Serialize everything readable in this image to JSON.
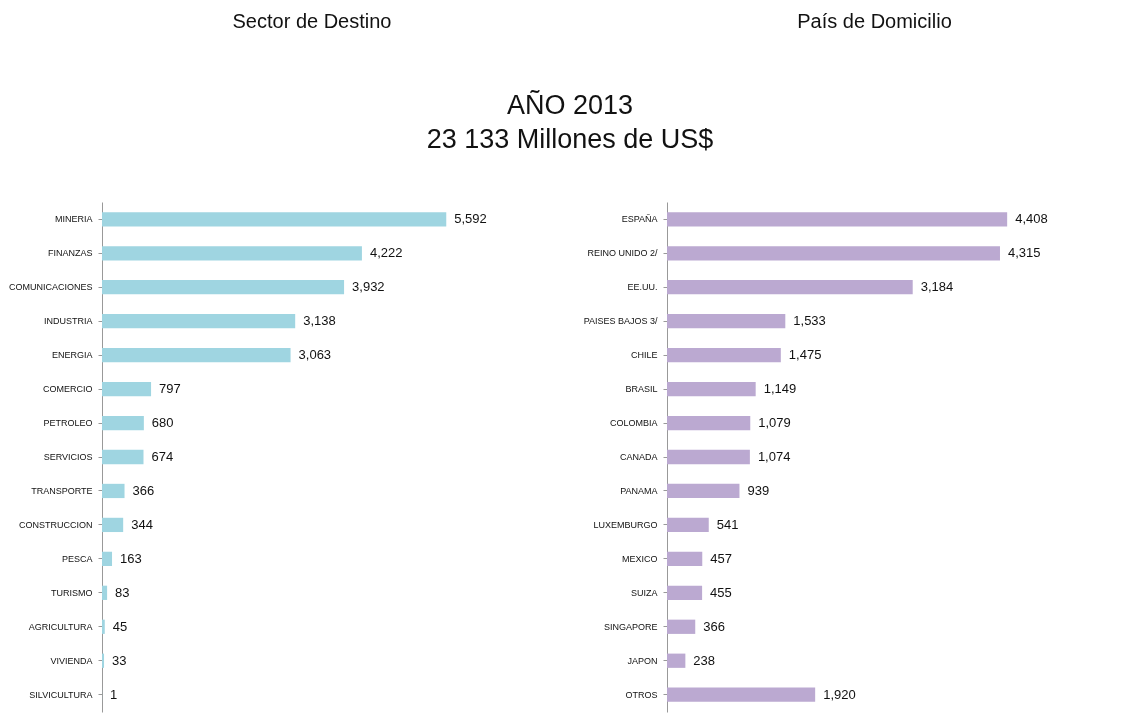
{
  "chart_data": [
    {
      "type": "bar",
      "orientation": "horizontal",
      "title": "Sector de Destino",
      "categories": [
        "MINERIA",
        "FINANZAS",
        "COMUNICACIONES",
        "INDUSTRIA",
        "ENERGIA",
        "COMERCIO",
        "PETROLEO",
        "SERVICIOS",
        "TRANSPORTE",
        "CONSTRUCCION",
        "PESCA",
        "TURISMO",
        "AGRICULTURA",
        "VIVIENDA",
        "SILVICULTURA"
      ],
      "values": [
        5592,
        4222,
        3932,
        3138,
        3063,
        797,
        680,
        674,
        366,
        344,
        163,
        83,
        45,
        33,
        1
      ],
      "color": "#9fd5e1",
      "value_labels": [
        "5,592",
        "4,222",
        "3,932",
        "3,138",
        "3,063",
        "797",
        "680",
        "674",
        "366",
        "344",
        "163",
        "83",
        "45",
        "33",
        "1"
      ]
    },
    {
      "type": "bar",
      "orientation": "horizontal",
      "title": "País de Domicilio",
      "categories": [
        "ESPAÑA",
        "REINO UNIDO 2/",
        "EE.UU.",
        "PAISES BAJOS 3/",
        "CHILE",
        "BRASIL",
        "COLOMBIA",
        "CANADA",
        "PANAMA",
        "LUXEMBURGO",
        "MEXICO",
        "SUIZA",
        "SINGAPORE",
        "JAPON",
        "OTROS"
      ],
      "values": [
        4408,
        4315,
        3184,
        1533,
        1475,
        1149,
        1079,
        1074,
        939,
        541,
        457,
        455,
        366,
        238,
        1920
      ],
      "color": "#bba9d1",
      "value_labels": [
        "4,408",
        "4,315",
        "3,184",
        "1,533",
        "1,475",
        "1,149",
        "1,079",
        "1,074",
        "939",
        "541",
        "457",
        "455",
        "366",
        "238",
        "1,920"
      ]
    },
    {
      "type": "other",
      "title": "AÑO 2013",
      "subtitle": "23 133 Millones de US$"
    }
  ]
}
